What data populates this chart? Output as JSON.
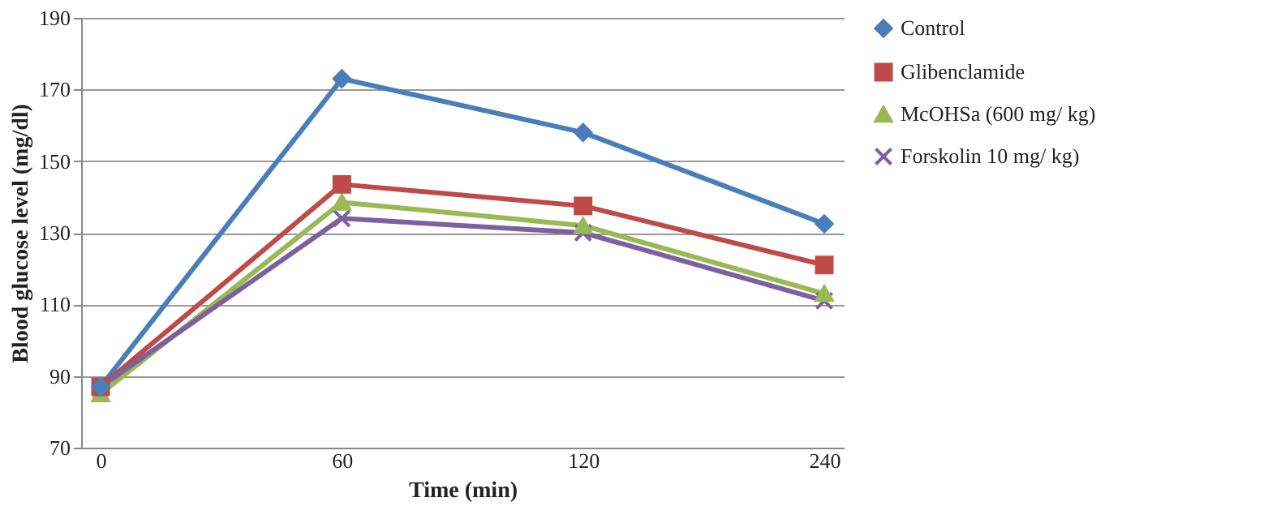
{
  "chart_data": {
    "type": "line",
    "xlabel": "Time (min)",
    "ylabel": "Blood glucose level (mg/dl)",
    "categories": [
      "0",
      "60",
      "120",
      "240"
    ],
    "series": [
      {
        "name": "Control",
        "color": "#4a7ebb",
        "marker": "diamond",
        "values": [
          87,
          173,
          158,
          132.5
        ]
      },
      {
        "name": "Glibenclamide",
        "color": "#be4b48",
        "marker": "square",
        "values": [
          87,
          143.5,
          137.5,
          121
        ]
      },
      {
        "name": "McOHSa  (600 mg/ kg)",
        "color": "#98b954",
        "marker": "triangle",
        "values": [
          85,
          138.5,
          132,
          113
        ]
      },
      {
        "name": "Forskolin 10 mg/ kg)",
        "color": "#7d60a0",
        "marker": "cross",
        "values": [
          87,
          134,
          130,
          111
        ]
      }
    ],
    "ylim": [
      70,
      190
    ],
    "yticks": [
      70,
      90,
      110,
      130,
      150,
      170,
      190
    ],
    "grid": "y",
    "legend": "right",
    "line_style": "solid"
  }
}
